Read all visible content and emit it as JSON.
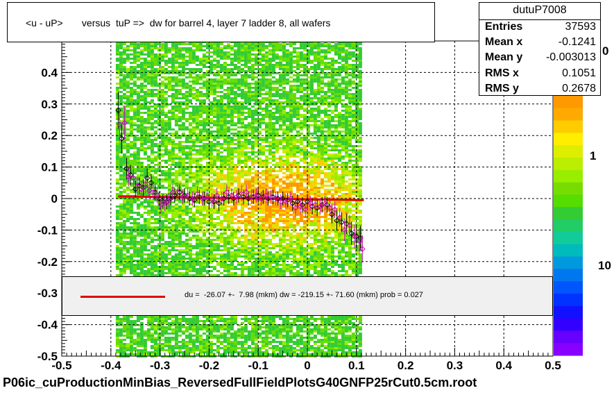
{
  "title": "<u - uP>       versus  tuP =>  dw for barrel 4, layer 7 ladder 8, all wafers",
  "stats": {
    "name": "dutuP7008",
    "rows": [
      {
        "key": "Entries",
        "value": "37593"
      },
      {
        "key": "Mean x",
        "value": "-0.1241"
      },
      {
        "key": "Mean y",
        "value": "-0.003013"
      },
      {
        "key": "RMS x",
        "value": "0.1051"
      },
      {
        "key": "RMS y",
        "value": "0.2678"
      }
    ]
  },
  "fit_text": "du =  -26.07 +-  7.98 (mkm) dw = -219.15 +- 71.60 (mkm) prob = 0.027",
  "footer": "P06ic_cuProductionMinBias_ReversedFullFieldPlotsG40GNFP25rCut0.5cm.root",
  "colorbar": {
    "labels": [
      "1",
      "10"
    ],
    "partial_top": "0"
  },
  "colors": {
    "fit": "#e00000",
    "points": "#000000",
    "points_alt": "#cc00cc",
    "frame": "#000000"
  },
  "chart_data": {
    "type": "scatter",
    "title": "<u - uP>       versus  tuP =>  dw for barrel 4, layer 7 ladder 8, all wafers",
    "xlim": [
      -0.5,
      0.5
    ],
    "ylim": [
      -0.5,
      0.5
    ],
    "xticks": [
      "-0.5",
      "-0.4",
      "-0.3",
      "-0.2",
      "-0.1",
      "0",
      "0.1",
      "0.2",
      "0.3",
      "0.4",
      "0.5"
    ],
    "yticks": [
      "-0.5",
      "-0.4",
      "-0.3",
      "-0.2",
      "-0.1",
      "0",
      "0.1",
      "0.2",
      "0.3",
      "0.4"
    ],
    "grid": true,
    "histogram_x_range": [
      -0.39,
      0.11
    ],
    "fit_line": {
      "x": [
        -0.385,
        0.115
      ],
      "y": [
        0.007,
        -0.005
      ]
    },
    "series": [
      {
        "x": [
          -0.385,
          -0.378,
          -0.368,
          -0.36,
          -0.35,
          -0.342,
          -0.334,
          -0.326,
          -0.318,
          -0.31,
          -0.302,
          -0.294,
          -0.286,
          -0.278,
          -0.27,
          -0.26,
          -0.25,
          -0.24,
          -0.23,
          -0.22,
          -0.21,
          -0.2,
          -0.19,
          -0.18,
          -0.17,
          -0.16,
          -0.15,
          -0.14,
          -0.13,
          -0.12,
          -0.11,
          -0.1,
          -0.09,
          -0.08,
          -0.07,
          -0.06,
          -0.05,
          -0.04,
          -0.03,
          -0.02,
          -0.01,
          0.0,
          0.01,
          0.02,
          0.03,
          0.04,
          0.05,
          0.06,
          0.07,
          0.08,
          0.09,
          0.1,
          0.108
        ],
        "y": [
          0.28,
          0.19,
          0.095,
          0.075,
          0.03,
          0.04,
          0.035,
          0.065,
          0.05,
          0.02,
          0.0,
          -0.01,
          -0.01,
          0.0,
          0.01,
          0.02,
          0.01,
          0.0,
          -0.005,
          0.005,
          0.0,
          -0.01,
          -0.01,
          -0.015,
          0.0,
          0.005,
          0.0,
          0.01,
          0.005,
          0.0,
          0.005,
          0.01,
          0.005,
          0.0,
          0.005,
          0.0,
          0.0,
          -0.005,
          -0.015,
          -0.01,
          -0.02,
          -0.01,
          -0.025,
          -0.03,
          -0.02,
          -0.02,
          -0.05,
          -0.07,
          -0.075,
          -0.08,
          -0.11,
          -0.12,
          -0.125
        ]
      },
      {
        "x": [
          -0.382,
          -0.372,
          -0.364,
          -0.354,
          -0.346,
          -0.338,
          -0.33,
          -0.322,
          -0.314,
          -0.306,
          -0.298,
          -0.29,
          -0.282,
          -0.274,
          -0.264,
          -0.254,
          -0.244,
          -0.234,
          -0.224,
          -0.214,
          -0.204,
          -0.194,
          -0.184,
          -0.174,
          -0.164,
          -0.154,
          -0.144,
          -0.134,
          -0.124,
          -0.114,
          -0.104,
          -0.094,
          -0.084,
          -0.074,
          -0.064,
          -0.054,
          -0.044,
          -0.034,
          -0.024,
          -0.014,
          -0.004,
          0.006,
          0.016,
          0.026,
          0.036,
          0.046,
          0.056,
          0.066,
          0.076,
          0.086,
          0.096,
          0.106,
          0.112
        ],
        "y": [
          0.235,
          0.24,
          0.07,
          0.065,
          0.04,
          0.03,
          0.045,
          0.025,
          0.02,
          0.01,
          -0.02,
          -0.015,
          -0.005,
          0.02,
          0.02,
          0.005,
          0.01,
          0.0,
          0.015,
          0.0,
          0.005,
          -0.005,
          0.01,
          0.0,
          0.02,
          0.01,
          0.005,
          0.015,
          0.02,
          0.005,
          0.01,
          0.0,
          0.01,
          0.005,
          0.0,
          -0.01,
          -0.01,
          0.0,
          -0.03,
          -0.025,
          -0.035,
          -0.015,
          -0.02,
          -0.025,
          -0.015,
          -0.03,
          -0.035,
          -0.06,
          -0.1,
          -0.085,
          -0.12,
          -0.135,
          -0.16
        ]
      }
    ]
  }
}
